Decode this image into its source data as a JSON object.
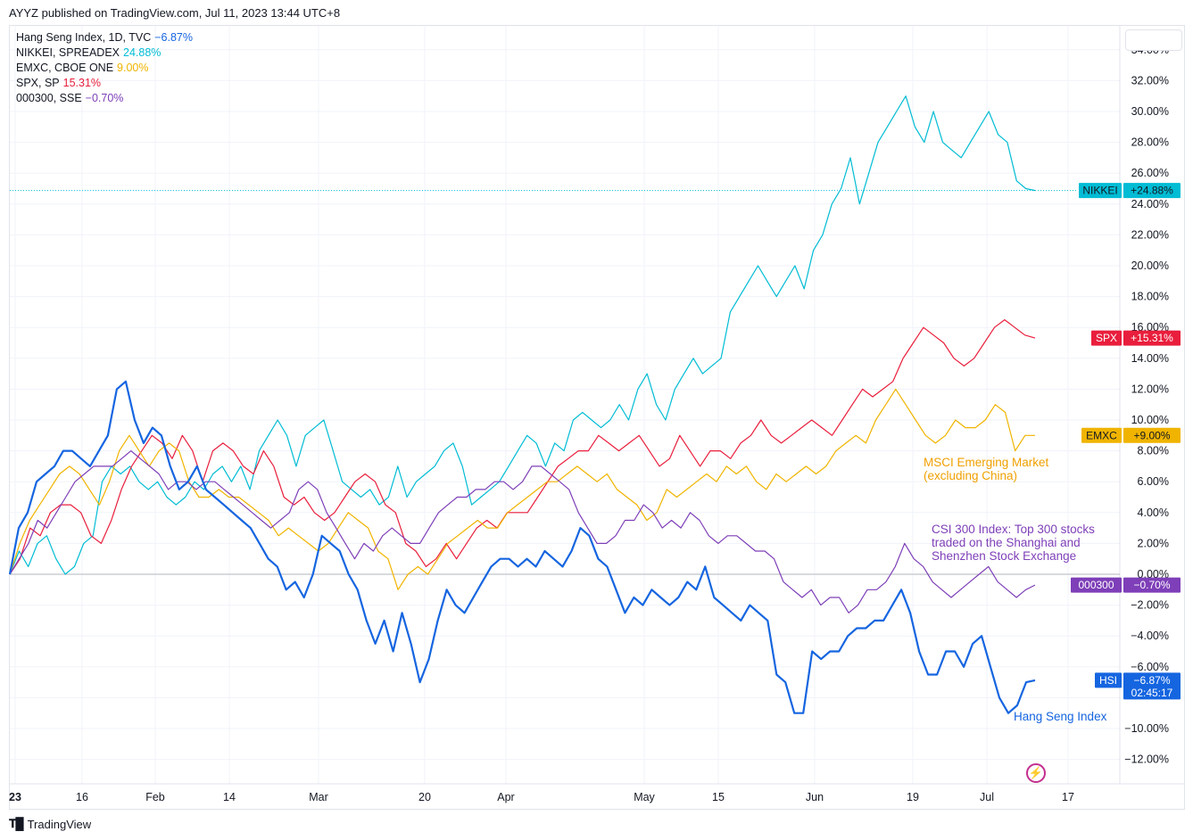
{
  "header": {
    "publisher": "AYYZ published on TradingView.com, Jul 11, 2023 13:44 UTC+8"
  },
  "legend": [
    {
      "name": "Hang Seng Index, 1D, TVC",
      "pct": "−6.87%",
      "color": "#1565e0"
    },
    {
      "name": "NIKKEI, SPREADEX",
      "pct": "24.88%",
      "color": "#00bcd4"
    },
    {
      "name": "EMXC, CBOE ONE",
      "pct": "9.00%",
      "color": "#f0b400"
    },
    {
      "name": "SPX, SP",
      "pct": "15.31%",
      "color": "#e91e3c"
    },
    {
      "name": "000300, SSE",
      "pct": "−0.70%",
      "color": "#7e3fb8"
    }
  ],
  "footer": {
    "brand": "TradingView"
  },
  "chart_data": {
    "type": "line",
    "x_tick_labels": [
      "23",
      "16",
      "Feb",
      "14",
      "Mar",
      "20",
      "Apr",
      "May",
      "15",
      "Jun",
      "19",
      "Jul",
      "17"
    ],
    "y_tick_labels": [
      "34.00%",
      "32.00%",
      "30.00%",
      "28.00%",
      "26.00%",
      "24.00%",
      "22.00%",
      "20.00%",
      "18.00%",
      "16.00%",
      "14.00%",
      "12.00%",
      "10.00%",
      "8.00%",
      "6.00%",
      "4.00%",
      "2.00%",
      "0.00%",
      "−2.00%",
      "−4.00%",
      "−6.00%",
      "−10.00%",
      "−12.00%"
    ],
    "ylim": [
      -13,
      35
    ],
    "grid": true,
    "series": [
      {
        "name": "NIKKEI",
        "color": "#00bcd4",
        "badge": "+24.88%",
        "last": 24.88,
        "values": [
          0,
          1.5,
          0.5,
          2,
          2.5,
          1,
          0,
          0.5,
          2,
          2.5,
          6,
          7,
          6.5,
          7,
          6,
          5.5,
          6,
          5,
          4.5,
          5,
          6,
          5.5,
          6.5,
          7,
          6,
          7,
          5.5,
          8,
          9,
          10,
          9,
          7,
          9,
          9.5,
          10,
          8,
          6,
          5.5,
          5,
          5.5,
          4.5,
          5,
          7,
          5,
          6,
          6.5,
          7,
          8,
          8.5,
          7,
          4.5,
          5,
          5.5,
          6,
          7,
          8,
          9,
          8.5,
          7,
          8.5,
          8,
          10,
          10.5,
          10,
          9.5,
          10,
          11,
          10,
          12,
          13,
          11,
          10,
          12,
          13,
          14,
          13,
          13.5,
          14,
          17,
          18,
          19,
          20,
          19,
          18,
          19,
          20,
          18.5,
          21,
          22,
          24,
          25,
          27,
          24,
          26,
          28,
          29,
          30,
          31,
          29,
          28,
          30,
          28,
          27.5,
          27,
          28,
          29,
          30,
          28.5,
          28,
          25.5,
          25,
          24.88
        ]
      },
      {
        "name": "SPX",
        "color": "#e91e3c",
        "badge": "+15.31%",
        "last": 15.31,
        "values": [
          0,
          1,
          3,
          2.5,
          4,
          4.5,
          4.5,
          4,
          2.5,
          2,
          3.5,
          5.5,
          7,
          8,
          9,
          8.5,
          7.5,
          9,
          8,
          6,
          8,
          8.5,
          8,
          7,
          6.5,
          8,
          7,
          5,
          4.5,
          5,
          4,
          3.5,
          4,
          5,
          6,
          6.5,
          6,
          4.5,
          4,
          2,
          1.5,
          0.5,
          1,
          2,
          1,
          2,
          3,
          3.5,
          3,
          4,
          4,
          4,
          5,
          6,
          7,
          7.5,
          8,
          8,
          9,
          8.5,
          8,
          8.5,
          9,
          8,
          7,
          7.5,
          9,
          8,
          7,
          8,
          8,
          7.5,
          8.5,
          9,
          10,
          9,
          8.5,
          9,
          9.5,
          10,
          9.5,
          9,
          10,
          11,
          12,
          11.5,
          12,
          12.5,
          14,
          15,
          16,
          15.5,
          15,
          14,
          13.5,
          14,
          15,
          16,
          16.5,
          16,
          15.5,
          15.31
        ]
      },
      {
        "name": "EMXC",
        "color": "#f0b400",
        "badge": "+9.00%",
        "last": 9.0,
        "values": [
          0,
          2,
          3.5,
          4.5,
          5.5,
          6.5,
          7,
          6.5,
          5.5,
          4.5,
          6,
          8,
          9,
          8,
          7,
          8,
          8.5,
          8,
          6,
          5,
          5,
          5.5,
          5,
          5,
          4.5,
          4,
          3.5,
          2.5,
          3,
          2.5,
          2,
          1.5,
          2,
          3,
          4,
          3.5,
          3,
          1.5,
          1,
          -1,
          0,
          0.5,
          0,
          1,
          2,
          2.5,
          3,
          3.5,
          3,
          3,
          4,
          4.5,
          5,
          5.5,
          6,
          6,
          6.5,
          7,
          6.5,
          6,
          6.5,
          5.5,
          5,
          4.5,
          3.5,
          4,
          5.5,
          5,
          5.5,
          6,
          6.5,
          6,
          7,
          6.5,
          7,
          6,
          5.5,
          6.5,
          6,
          6.5,
          7,
          6.5,
          7,
          8,
          8.5,
          9,
          8.5,
          10,
          11,
          12,
          11,
          10,
          9,
          8.5,
          9,
          10,
          9.5,
          9.5,
          10,
          11,
          10.5,
          8,
          9,
          9.0
        ]
      },
      {
        "name": "000300",
        "color": "#7e3fb8",
        "badge": "−0.70%",
        "last": -0.7,
        "values": [
          0,
          1,
          2,
          3.5,
          3,
          4,
          5,
          6,
          6.5,
          7,
          7,
          7,
          7.5,
          8,
          7.5,
          7,
          6.5,
          5.5,
          6,
          6,
          5.5,
          6,
          6,
          5.5,
          5,
          4.5,
          4,
          3.5,
          3,
          3.5,
          4,
          5.5,
          6,
          5.5,
          4,
          3,
          2,
          1,
          2,
          1.5,
          2.5,
          3,
          2.5,
          2,
          2,
          3,
          4,
          4.5,
          5,
          5,
          5.5,
          5.5,
          6,
          6,
          5.5,
          6,
          7,
          7,
          6.5,
          6,
          5.5,
          4,
          3,
          2,
          2,
          2.5,
          3.5,
          3.5,
          4.5,
          4,
          3,
          3.5,
          3,
          4,
          3.5,
          2.5,
          2,
          2.5,
          2.5,
          2,
          1.5,
          1.5,
          1,
          -0.5,
          -1,
          -1.5,
          -1,
          -2,
          -1.5,
          -1.5,
          -2.5,
          -2,
          -1,
          -1,
          -0.5,
          0.5,
          2,
          1,
          0.5,
          -0.5,
          -1,
          -1.5,
          -1,
          -0.5,
          0,
          0.5,
          -0.5,
          -1,
          -1.5,
          -1,
          -0.7
        ]
      },
      {
        "name": "HSI",
        "color": "#1565e0",
        "badge": "−6.87%",
        "last": -6.87,
        "values": [
          0,
          3,
          4,
          6,
          6.5,
          7,
          8,
          8,
          7.5,
          7,
          8,
          9,
          12,
          12.5,
          10,
          8.5,
          9.5,
          9,
          7,
          5.5,
          6,
          7,
          5.5,
          5,
          4.5,
          4,
          3.5,
          3,
          2,
          1,
          0.5,
          -1,
          -0.5,
          -1.5,
          0,
          2.5,
          2,
          1.5,
          0,
          -1,
          -3,
          -4.5,
          -3,
          -5,
          -2.5,
          -4.5,
          -7,
          -5.5,
          -3,
          -1,
          -2,
          -2.5,
          -1.5,
          -0.5,
          0.5,
          1,
          1,
          0.5,
          1,
          0.5,
          1.5,
          1,
          0.5,
          1.5,
          3,
          2.5,
          1,
          0.5,
          -1,
          -2.5,
          -1.5,
          -2,
          -1,
          -1.5,
          -2,
          -1.5,
          -0.5,
          -1,
          0.5,
          -1.5,
          -2,
          -2.5,
          -3,
          -2,
          -2.5,
          -3,
          -6.5,
          -7,
          -9,
          -9,
          -5,
          -5.5,
          -5,
          -5,
          -4,
          -3.5,
          -3.5,
          -3,
          -3,
          -2,
          -1,
          -2.5,
          -5,
          -6.5,
          -6.5,
          -5,
          -5,
          -6,
          -4.5,
          -4,
          -6,
          -8,
          -9,
          -8.5,
          -7,
          -6.87
        ]
      }
    ],
    "annotations": [
      {
        "text": "MSCI Emerging Market\n(excluding China)",
        "color": "#f0a000"
      },
      {
        "text": "CSI 300 Index: Top 300 stocks\ntraded on the Shanghai and\nShenzhen Stock Exchange",
        "color": "#7e3fb8"
      },
      {
        "text": "Hang Seng Index",
        "color": "#1565e0"
      }
    ],
    "hsi_countdown": "02:45:17"
  }
}
